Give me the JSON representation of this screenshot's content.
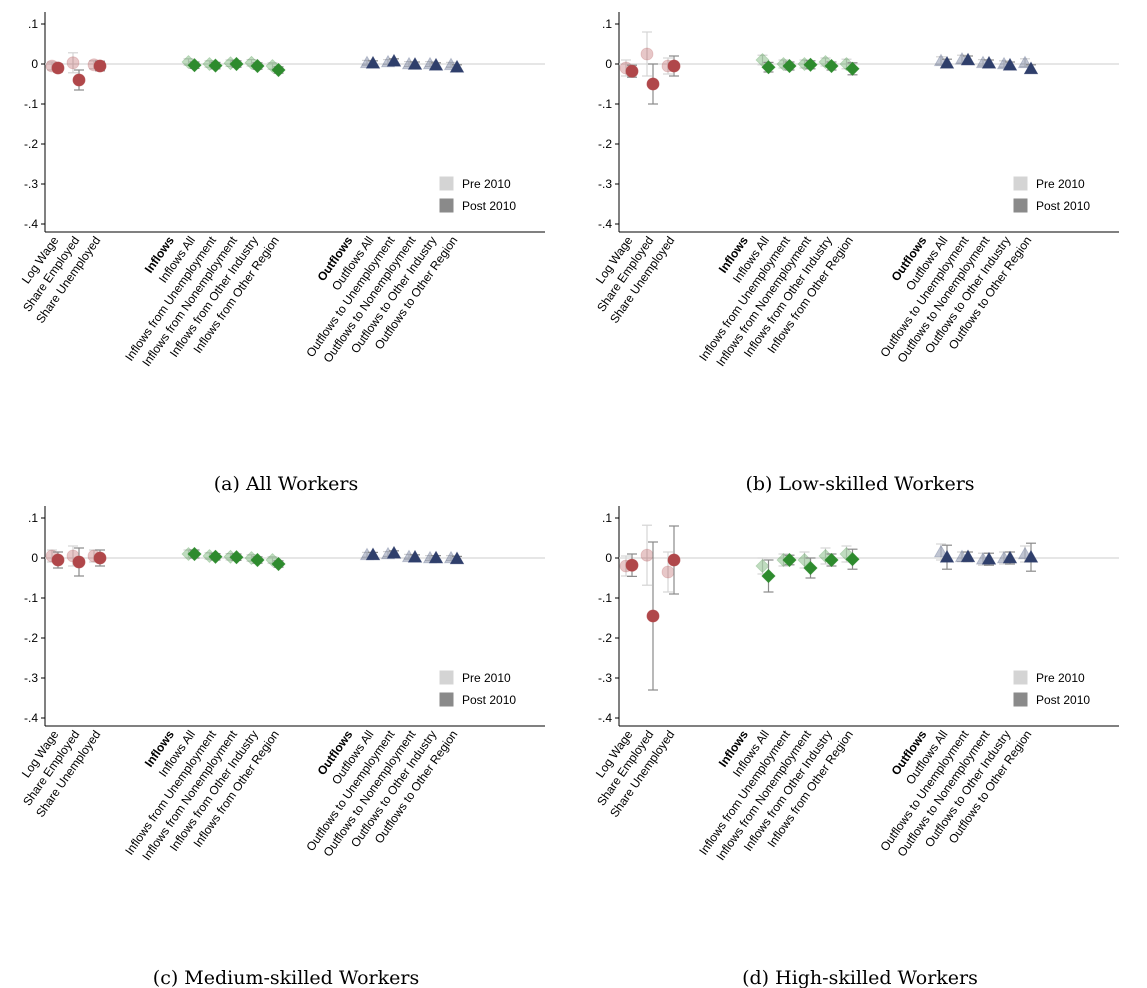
{
  "chart_data": [
    {
      "type": "dot",
      "caption": "(a) All Workers",
      "categories": [
        "Log Wage",
        "Share Employed",
        "Share Unemployed",
        "Inflows",
        "Inflows All",
        "Inflows from Unemployment",
        "Inflows from Nonemployment",
        "Inflows from Other Industry",
        "Inflows from Other Region",
        "Outflows",
        "Outflows All",
        "Outflows to Unemployment",
        "Outflows to Nonemployment",
        "Outflows to Other Industry",
        "Outflows to Other Region"
      ],
      "marker_colors": [
        "#b0474a",
        "#b0474a",
        "#b0474a",
        null,
        "#2e8b2e",
        "#2e8b2e",
        "#2e8b2e",
        "#2e8b2e",
        "#2e8b2e",
        null,
        "#2f3f6b",
        "#2f3f6b",
        "#2f3f6b",
        "#2f3f6b",
        "#2f3f6b"
      ],
      "marker_shapes": [
        "circle",
        "circle",
        "circle",
        null,
        "diamond",
        "diamond",
        "diamond",
        "diamond",
        "diamond",
        null,
        "triangle",
        "triangle",
        "triangle",
        "triangle",
        "triangle"
      ],
      "series": [
        {
          "name": "Pre 2010",
          "color": "#d4d4d4",
          "opacity": 0.3,
          "values": [
            -0.005,
            0.003,
            -0.002,
            null,
            0.005,
            0,
            0.002,
            0.003,
            -0.005,
            null,
            0.003,
            0.005,
            0,
            0,
            -0.002
          ],
          "errors": [
            0.01,
            0.025,
            0.01,
            null,
            0.008,
            0.008,
            0.008,
            0.008,
            0.008,
            null,
            0.006,
            0.006,
            0.006,
            0.006,
            0.006
          ]
        },
        {
          "name": "Post 2010",
          "color": "#8a8a8a",
          "opacity": 1,
          "values": [
            -0.01,
            -0.04,
            -0.005,
            null,
            -0.003,
            -0.004,
            0,
            -0.005,
            -0.015,
            null,
            0.002,
            0.007,
            -0.001,
            -0.003,
            -0.008
          ],
          "errors": [
            0.01,
            0.025,
            0.012,
            null,
            0.008,
            0.008,
            0.008,
            0.008,
            0.008,
            null,
            0.006,
            0.006,
            0.006,
            0.006,
            0.006
          ]
        }
      ],
      "ylim": [
        -0.42,
        0.13
      ],
      "reference_line": 0,
      "yticks": [
        {
          "value": 0.1,
          "label": ".1"
        },
        0,
        {
          "value": -0.1,
          "label": "-.1"
        },
        {
          "value": -0.2,
          "label": "-.2"
        },
        {
          "value": -0.3,
          "label": "-.3"
        },
        {
          "value": -0.4,
          "label": "-.4"
        }
      ],
      "legend": "lower right"
    },
    {
      "type": "dot",
      "caption": "(b) Low-skilled Workers",
      "categories": [
        "Log Wage",
        "Share Employed",
        "Share Unemployed",
        "Inflows",
        "Inflows All",
        "Inflows from Unemployment",
        "Inflows from Nonemployment",
        "Inflows from Other Industry",
        "Inflows from Other Region",
        "Outflows",
        "Outflows All",
        "Outflows to Unemployment",
        "Outflows to Nonemployment",
        "Outflows to Other Industry",
        "Outflows to Other Region"
      ],
      "marker_colors": [
        "#b0474a",
        "#b0474a",
        "#b0474a",
        null,
        "#2e8b2e",
        "#2e8b2e",
        "#2e8b2e",
        "#2e8b2e",
        "#2e8b2e",
        null,
        "#2f3f6b",
        "#2f3f6b",
        "#2f3f6b",
        "#2f3f6b",
        "#2f3f6b"
      ],
      "marker_shapes": [
        "circle",
        "circle",
        "circle",
        null,
        "diamond",
        "diamond",
        "diamond",
        "diamond",
        "diamond",
        null,
        "triangle",
        "triangle",
        "triangle",
        "triangle",
        "triangle"
      ],
      "series": [
        {
          "name": "Pre 2010",
          "color": "#d4d4d4",
          "opacity": 0.3,
          "values": [
            -0.01,
            0.025,
            -0.005,
            null,
            0.01,
            0,
            0,
            0.005,
            0,
            null,
            0.008,
            0.012,
            0.003,
            0,
            0.003
          ],
          "errors": [
            0.02,
            0.055,
            0.02,
            null,
            0.012,
            0.01,
            0.01,
            0.01,
            0.012,
            null,
            0.01,
            0.01,
            0.008,
            0.008,
            0.01
          ]
        },
        {
          "name": "Post 2010",
          "color": "#8a8a8a",
          "opacity": 1,
          "values": [
            -0.018,
            -0.05,
            -0.005,
            null,
            -0.008,
            -0.005,
            -0.002,
            -0.005,
            -0.012,
            null,
            0.002,
            0.01,
            0.002,
            -0.003,
            -0.012
          ],
          "errors": [
            0.015,
            0.05,
            0.025,
            null,
            0.012,
            0.01,
            0.01,
            0.01,
            0.015,
            null,
            0.01,
            0.01,
            0.008,
            0.008,
            0.01
          ]
        }
      ],
      "ylim": [
        -0.42,
        0.13
      ],
      "reference_line": 0,
      "yticks": [
        {
          "value": 0.1,
          "label": ".1"
        },
        0,
        {
          "value": -0.1,
          "label": "-.1"
        },
        {
          "value": -0.2,
          "label": "-.2"
        },
        {
          "value": -0.3,
          "label": "-.3"
        },
        {
          "value": -0.4,
          "label": "-.4"
        }
      ],
      "legend": "lower right"
    },
    {
      "type": "dot",
      "caption": "(c) Medium-skilled Workers",
      "categories": [
        "Log Wage",
        "Share Employed",
        "Share Unemployed",
        "Inflows",
        "Inflows All",
        "Inflows from Unemployment",
        "Inflows from Nonemployment",
        "Inflows from Other Industry",
        "Inflows from Other Region",
        "Outflows",
        "Outflows All",
        "Outflows to Unemployment",
        "Outflows to Nonemployment",
        "Outflows to Other Industry",
        "Outflows to Other Region"
      ],
      "marker_colors": [
        "#b0474a",
        "#b0474a",
        "#b0474a",
        null,
        "#2e8b2e",
        "#2e8b2e",
        "#2e8b2e",
        "#2e8b2e",
        "#2e8b2e",
        null,
        "#2f3f6b",
        "#2f3f6b",
        "#2f3f6b",
        "#2f3f6b",
        "#2f3f6b"
      ],
      "marker_shapes": [
        "circle",
        "circle",
        "circle",
        null,
        "diamond",
        "diamond",
        "diamond",
        "diamond",
        "diamond",
        null,
        "triangle",
        "triangle",
        "triangle",
        "triangle",
        "triangle"
      ],
      "series": [
        {
          "name": "Pre 2010",
          "color": "#d4d4d4",
          "opacity": 0.3,
          "values": [
            0.005,
            0.005,
            0.005,
            null,
            0.01,
            0.005,
            0.003,
            0,
            -0.005,
            null,
            0.008,
            0.01,
            0.003,
            0,
            0
          ],
          "errors": [
            0.015,
            0.025,
            0.015,
            null,
            0.01,
            0.008,
            0.008,
            0.008,
            0.008,
            null,
            0.006,
            0.006,
            0.006,
            0.006,
            0.006
          ]
        },
        {
          "name": "Post 2010",
          "color": "#8a8a8a",
          "opacity": 1,
          "values": [
            -0.005,
            -0.01,
            0,
            null,
            0.01,
            0.003,
            0.002,
            -0.005,
            -0.015,
            null,
            0.008,
            0.012,
            0.002,
            0,
            -0.002
          ],
          "errors": [
            0.02,
            0.035,
            0.02,
            null,
            0.01,
            0.008,
            0.008,
            0.008,
            0.008,
            null,
            0.006,
            0.006,
            0.006,
            0.006,
            0.006
          ]
        }
      ],
      "ylim": [
        -0.42,
        0.13
      ],
      "reference_line": 0,
      "yticks": [
        {
          "value": 0.1,
          "label": ".1"
        },
        0,
        {
          "value": -0.1,
          "label": "-.1"
        },
        {
          "value": -0.2,
          "label": "-.2"
        },
        {
          "value": -0.3,
          "label": "-.3"
        },
        {
          "value": -0.4,
          "label": "-.4"
        }
      ],
      "legend": "lower right"
    },
    {
      "type": "dot",
      "caption": "(d) High-skilled Workers",
      "categories": [
        "Log Wage",
        "Share Employed",
        "Share Unemployed",
        "Inflows",
        "Inflows All",
        "Inflows from Unemployment",
        "Inflows from Nonemployment",
        "Inflows from Other Industry",
        "Inflows from Other Region",
        "Outflows",
        "Outflows All",
        "Outflows to Unemployment",
        "Outflows to Nonemployment",
        "Outflows to Other Industry",
        "Outflows to Other Region"
      ],
      "marker_colors": [
        "#b0474a",
        "#b0474a",
        "#b0474a",
        null,
        "#2e8b2e",
        "#2e8b2e",
        "#2e8b2e",
        "#2e8b2e",
        "#2e8b2e",
        null,
        "#2f3f6b",
        "#2f3f6b",
        "#2f3f6b",
        "#2f3f6b",
        "#2f3f6b"
      ],
      "marker_shapes": [
        "circle",
        "circle",
        "circle",
        null,
        "diamond",
        "diamond",
        "diamond",
        "diamond",
        "diamond",
        null,
        "triangle",
        "triangle",
        "triangle",
        "triangle",
        "triangle"
      ],
      "series": [
        {
          "name": "Pre 2010",
          "color": "#d4d4d4",
          "opacity": 0.3,
          "values": [
            -0.02,
            0.007,
            -0.035,
            null,
            -0.02,
            -0.005,
            -0.005,
            0.005,
            0.01,
            null,
            0.015,
            0.003,
            -0.003,
            0,
            0.01
          ],
          "errors": [
            0.025,
            0.075,
            0.05,
            null,
            0.02,
            0.015,
            0.02,
            0.02,
            0.02,
            null,
            0.02,
            0.012,
            0.015,
            0.015,
            0.02
          ]
        },
        {
          "name": "Post 2010",
          "color": "#8a8a8a",
          "opacity": 1,
          "values": [
            -0.018,
            -0.145,
            -0.005,
            null,
            -0.045,
            -0.005,
            -0.025,
            -0.005,
            -0.003,
            null,
            0.002,
            0.003,
            -0.003,
            0,
            0.002
          ],
          "errors": [
            0.028,
            0.185,
            0.085,
            null,
            0.04,
            0.012,
            0.025,
            0.015,
            0.025,
            null,
            0.03,
            0.012,
            0.015,
            0.015,
            0.035
          ]
        }
      ],
      "ylim": [
        -0.42,
        0.13
      ],
      "reference_line": 0,
      "yticks": [
        {
          "value": 0.1,
          "label": ".1"
        },
        0,
        {
          "value": -0.1,
          "label": "-.1"
        },
        {
          "value": -0.2,
          "label": "-.2"
        },
        {
          "value": -0.3,
          "label": "-.3"
        },
        {
          "value": -0.4,
          "label": "-.4"
        }
      ],
      "legend": "lower right"
    }
  ]
}
